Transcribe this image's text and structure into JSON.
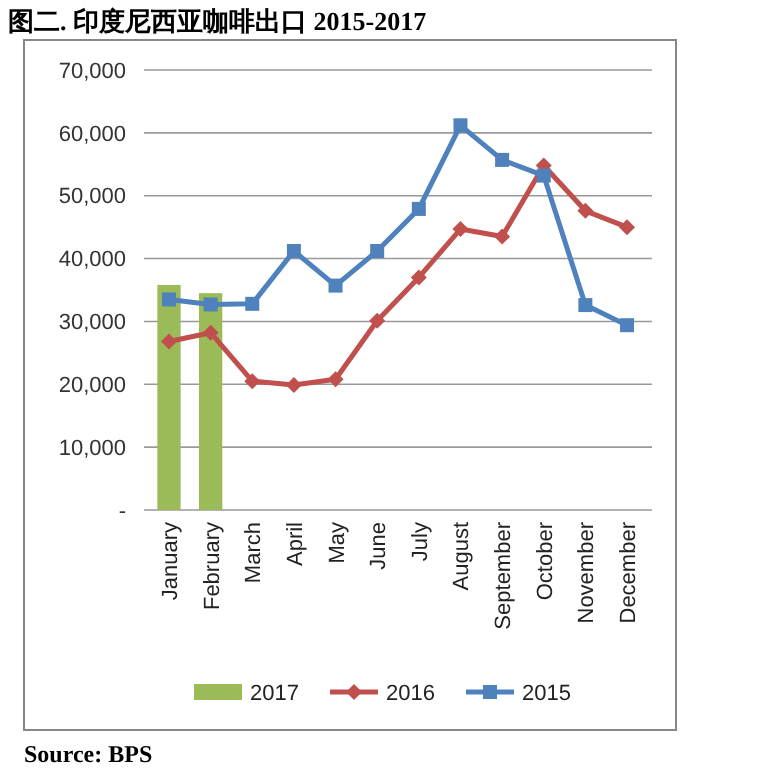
{
  "chart_data": {
    "type": "bar",
    "title": "图二. 印度尼西亚咖啡出口 2015-2017",
    "categories": [
      "January",
      "February",
      "March",
      "April",
      "May",
      "June",
      "July",
      "August",
      "September",
      "October",
      "November",
      "December"
    ],
    "series": [
      {
        "name": "2017",
        "color": "#9bbb59",
        "values": [
          35800,
          34500,
          null,
          null,
          null,
          null,
          null,
          null,
          null,
          null,
          null,
          null
        ]
      },
      {
        "name": "2016",
        "type": "line",
        "marker": "diamond",
        "color": "#c0504d",
        "values": [
          26800,
          28200,
          20500,
          19900,
          20800,
          30100,
          37000,
          44700,
          43500,
          54800,
          47600,
          45000
        ]
      },
      {
        "name": "2015",
        "type": "line",
        "marker": "square",
        "color": "#4f81bd",
        "values": [
          33500,
          32700,
          32800,
          41200,
          35700,
          41200,
          47900,
          61200,
          55700,
          53200,
          32600,
          29400
        ]
      }
    ],
    "ylim": [
      0,
      70000
    ],
    "yticks": [
      {
        "value": 0,
        "label": "-"
      },
      {
        "value": 10000,
        "label": "10,000"
      },
      {
        "value": 20000,
        "label": "20,000"
      },
      {
        "value": 30000,
        "label": "30,000"
      },
      {
        "value": 40000,
        "label": "40,000"
      },
      {
        "value": 50000,
        "label": "50,000"
      },
      {
        "value": 60000,
        "label": "60,000"
      },
      {
        "value": 70000,
        "label": "70,000"
      }
    ],
    "grid": "y",
    "legend": "bottom",
    "line_style": "solid",
    "annotations": [
      "Source: BPS"
    ]
  }
}
